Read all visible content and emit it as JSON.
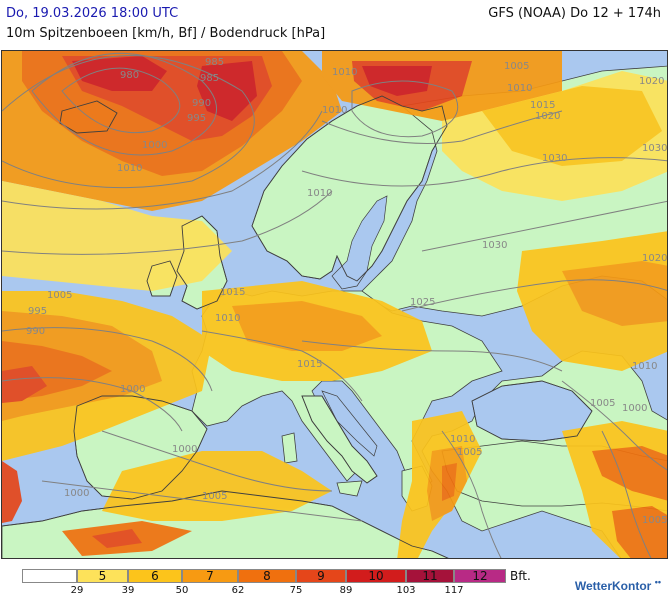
{
  "header": {
    "date": "Do, 19.03.2026 18:00 UTC",
    "model": "GFS (NOAA) Do 12 + 174h",
    "parameter": "10m Spitzenboeen [km/h, Bf] / Bodendruck [hPa]"
  },
  "colors": {
    "sea": "#aac8ef",
    "land": "#c9f5c2",
    "bf5": "#fde25a",
    "bf6": "#fcc41b",
    "bf7": "#f79a12",
    "bf8": "#f0700e",
    "bf9": "#e5461a",
    "bf10": "#d21c1c",
    "bf11": "#a5123a",
    "bf12": "#b82a85",
    "isobar": "#808080",
    "border": "#404040"
  },
  "isobars": [
    {
      "label": "980"
    },
    {
      "label": "985"
    },
    {
      "label": "990"
    },
    {
      "label": "995"
    },
    {
      "label": "1000"
    },
    {
      "label": "1005"
    },
    {
      "label": "1010"
    },
    {
      "label": "1015"
    },
    {
      "label": "1020"
    },
    {
      "label": "1025"
    },
    {
      "label": "1030"
    }
  ],
  "pressure_labels": [
    {
      "text": "980"
    },
    {
      "text": "985"
    },
    {
      "text": "985"
    },
    {
      "text": "990"
    },
    {
      "text": "995"
    },
    {
      "text": "1000"
    },
    {
      "text": "1010"
    },
    {
      "text": "1010"
    },
    {
      "text": "1010"
    },
    {
      "text": "1010"
    },
    {
      "text": "1005"
    },
    {
      "text": "1010"
    },
    {
      "text": "1015"
    },
    {
      "text": "1020"
    },
    {
      "text": "1020"
    },
    {
      "text": "1030"
    },
    {
      "text": "1030"
    },
    {
      "text": "1030"
    },
    {
      "text": "1020"
    },
    {
      "text": "1005"
    },
    {
      "text": "995"
    },
    {
      "text": "990"
    },
    {
      "text": "1015"
    },
    {
      "text": "1010"
    },
    {
      "text": "1025"
    },
    {
      "text": "1015"
    },
    {
      "text": "1000"
    },
    {
      "text": "1000"
    },
    {
      "text": "1005"
    },
    {
      "text": "1000"
    },
    {
      "text": "1010"
    },
    {
      "text": "1005"
    },
    {
      "text": "1010"
    },
    {
      "text": "1000"
    },
    {
      "text": "1005"
    },
    {
      "text": "1005"
    }
  ],
  "legend": {
    "classes": [
      {
        "bf": "",
        "color": "#ffffff"
      },
      {
        "bf": "5",
        "color": "#fde25a"
      },
      {
        "bf": "6",
        "color": "#fcc41b"
      },
      {
        "bf": "7",
        "color": "#f79a12"
      },
      {
        "bf": "8",
        "color": "#f0700e"
      },
      {
        "bf": "9",
        "color": "#e5461a"
      },
      {
        "bf": "10",
        "color": "#d21c1c"
      },
      {
        "bf": "11",
        "color": "#a5123a"
      },
      {
        "bf": "12",
        "color": "#b82a85"
      }
    ],
    "thresholds": [
      "29",
      "39",
      "50",
      "62",
      "75",
      "89",
      "103",
      "117"
    ],
    "unit": "Bft."
  },
  "brand": "WetterKontor"
}
